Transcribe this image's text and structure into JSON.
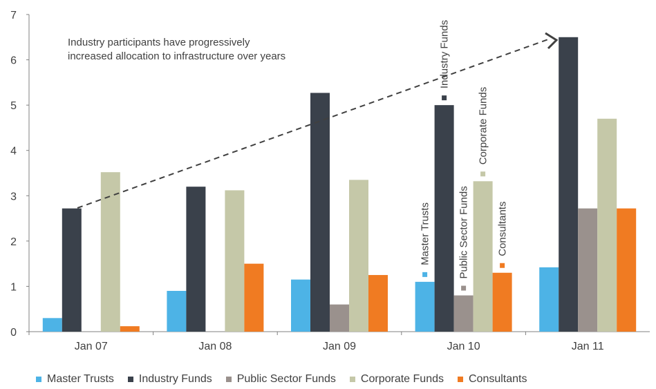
{
  "chart_data": {
    "type": "bar",
    "annotation": "Industry participants have progressively\nincreased allocation to infrastructure over years",
    "categories": [
      "Jan 07",
      "Jan 08",
      "Jan 09",
      "Jan 10",
      "Jan 11"
    ],
    "ylim": [
      0,
      7
    ],
    "yticks": [
      0,
      1,
      2,
      3,
      4,
      5,
      6,
      7
    ],
    "grid": false,
    "legend_position": "bottom",
    "series": [
      {
        "name": "Master Trusts",
        "color": "#4db3e6",
        "values": [
          0.3,
          0.9,
          1.15,
          1.1,
          1.42
        ]
      },
      {
        "name": "Industry Funds",
        "color": "#3a414b",
        "values": [
          2.72,
          3.2,
          5.27,
          5.0,
          6.5
        ]
      },
      {
        "name": "Public Sector Funds",
        "color": "#9a918d",
        "values": [
          0,
          0,
          0.6,
          0.8,
          2.72
        ]
      },
      {
        "name": "Corporate Funds",
        "color": "#c5c8a8",
        "values": [
          3.52,
          3.12,
          3.35,
          3.32,
          4.7
        ]
      },
      {
        "name": "Consultants",
        "color": "#f07b22",
        "values": [
          0.12,
          1.5,
          1.25,
          1.3,
          2.72
        ]
      }
    ],
    "series_labels_at": "Jan 10"
  }
}
